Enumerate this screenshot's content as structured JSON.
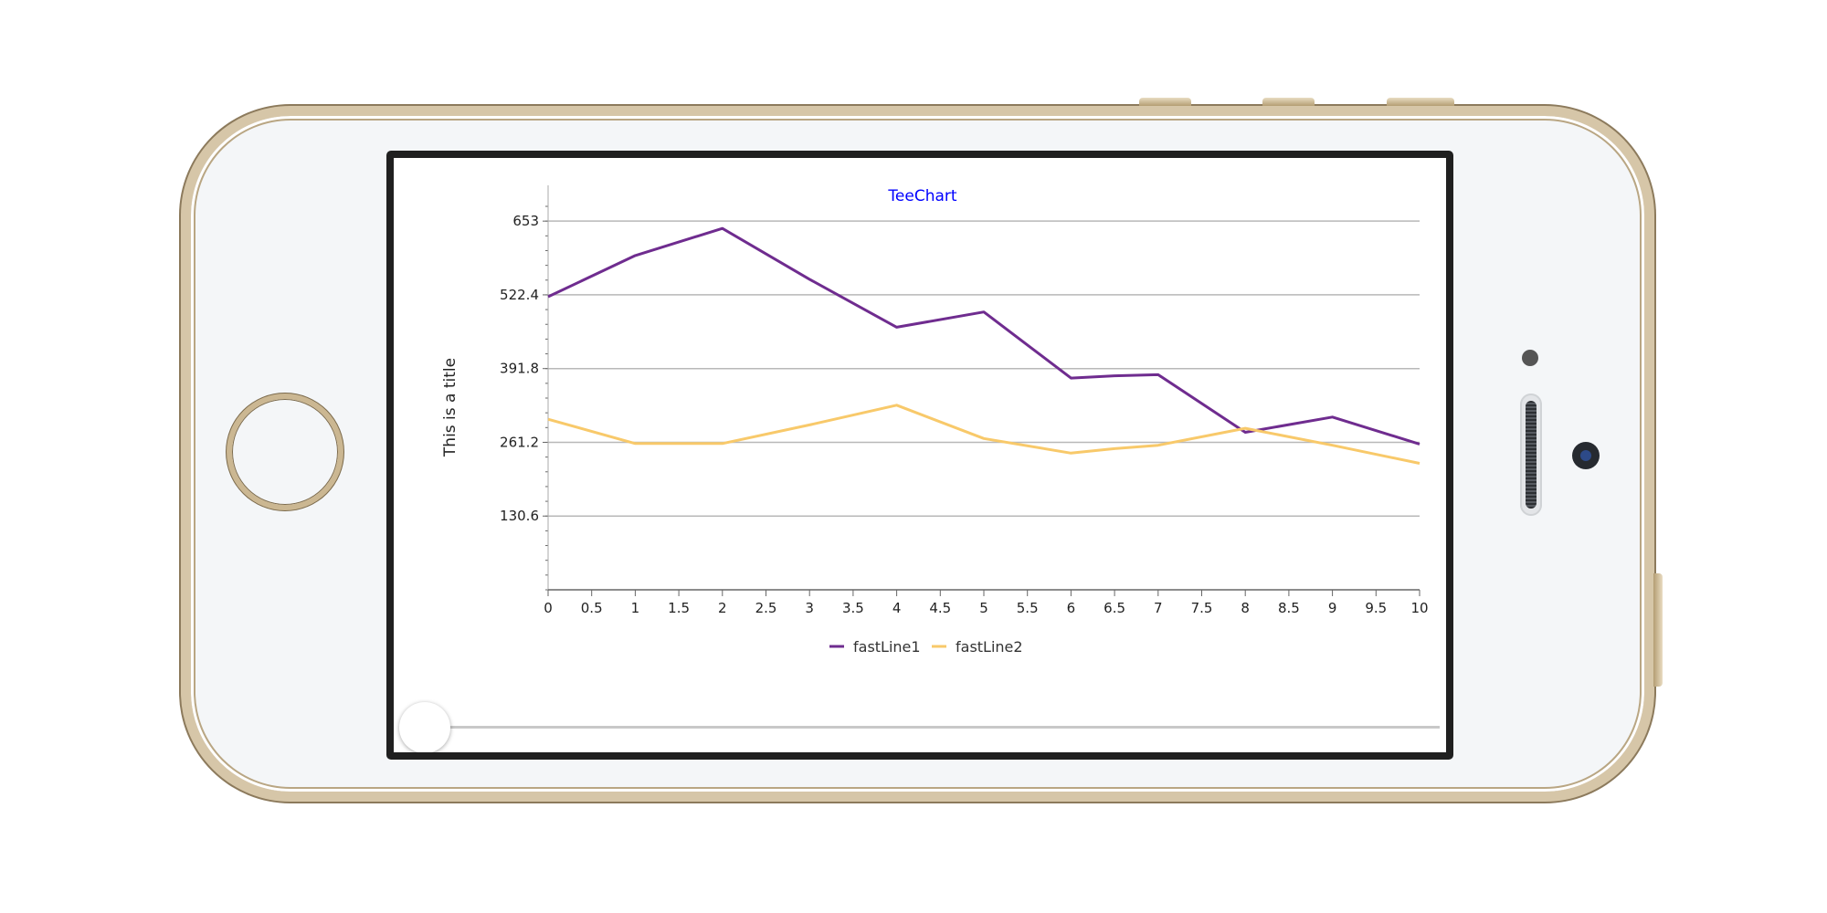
{
  "chart_data": {
    "type": "line",
    "title": "TeeChart",
    "ylabel": "This is a title",
    "xlabel": "",
    "x": [
      0,
      1,
      2,
      3,
      4,
      5,
      6,
      6.5,
      7,
      8,
      9,
      10
    ],
    "xlim": [
      0,
      10
    ],
    "ylim": [
      0,
      684
    ],
    "xticks": [
      "0",
      "0.5",
      "1",
      "1.5",
      "2",
      "2.5",
      "3",
      "3.5",
      "4",
      "4.5",
      "5",
      "5.5",
      "6",
      "6.5",
      "7",
      "7.5",
      "8",
      "8.5",
      "9",
      "9.5",
      "10"
    ],
    "yticks": [
      "653",
      "522.4",
      "391.8",
      "261.2",
      "130.6"
    ],
    "ytick_values": [
      653,
      522.4,
      391.8,
      261.2,
      130.6
    ],
    "grid": true,
    "legend_position": "bottom",
    "series": [
      {
        "name": "fastLine1",
        "color": "#6f2c8f",
        "x": [
          0,
          1,
          2,
          3,
          4,
          5,
          6,
          6.5,
          7,
          8,
          9,
          10
        ],
        "values": [
          519,
          592,
          640,
          550,
          465,
          492,
          375,
          379,
          381,
          279,
          306,
          258
        ]
      },
      {
        "name": "fastLine2",
        "color": "#f8c96a",
        "x": [
          0,
          1,
          2,
          3,
          4,
          5,
          6,
          6.5,
          7,
          8,
          9,
          10
        ],
        "values": [
          302,
          259,
          259,
          292,
          327,
          268,
          242,
          250,
          256,
          286,
          256,
          224
        ]
      }
    ]
  },
  "slider": {
    "value": 0
  },
  "colors": {
    "title": "#0000ff",
    "grid": "#b8b8b8",
    "axis": "#666666",
    "phone_frame": "#d6c6a8"
  }
}
